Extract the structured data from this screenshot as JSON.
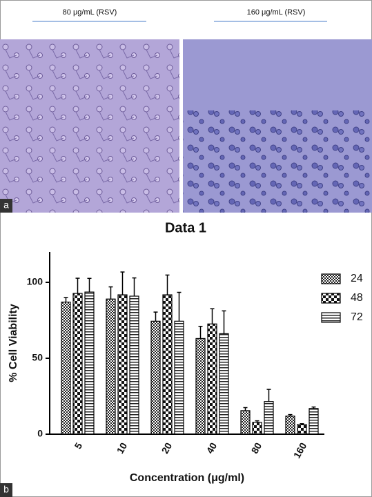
{
  "panel_a": {
    "captions": [
      "80 μg/mL (RSV)",
      "160 μg/mL (RSV)"
    ],
    "label": "a"
  },
  "panel_b": {
    "label": "b"
  },
  "chart_data": {
    "type": "bar",
    "title": "Data 1",
    "x_label": "Concentration (μg/ml)",
    "y_label": "% Cell Viability",
    "categories": [
      "5",
      "10",
      "20",
      "40",
      "80",
      "160"
    ],
    "series": [
      {
        "name": "24",
        "color": "#000000",
        "pattern": "checker-small",
        "values": [
          87,
          89,
          74.4,
          63,
          15.5,
          11.9
        ],
        "errors": [
          3,
          8,
          6,
          8,
          2,
          1
        ]
      },
      {
        "name": "48",
        "color": "#000000",
        "pattern": "checker-large",
        "values": [
          92.7,
          91.8,
          91.8,
          72.6,
          7.8,
          6.4
        ],
        "errors": [
          10,
          15,
          13,
          10,
          1,
          0.5
        ]
      },
      {
        "name": "72",
        "color": "#000000",
        "pattern": "stripes",
        "values": [
          93.6,
          90.9,
          74.4,
          66.2,
          21.5,
          16.9
        ],
        "errors": [
          9,
          12,
          19,
          15,
          8,
          1
        ]
      }
    ],
    "ylim": [
      0,
      120
    ],
    "yticks": [
      0,
      50,
      100
    ],
    "grid": false,
    "legend": "right"
  }
}
